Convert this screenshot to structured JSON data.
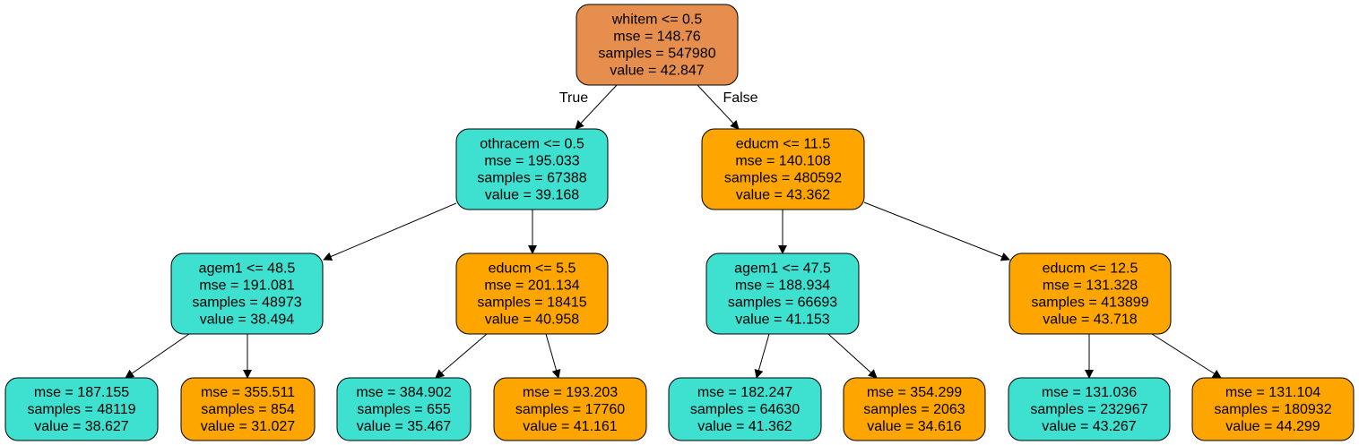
{
  "colors": {
    "root": "#e58e4d",
    "teal": "#3ee0d0",
    "orange": "#ffa500"
  },
  "edge_labels": {
    "true": "True",
    "false": "False"
  },
  "nodes": [
    {
      "id": "n0",
      "color": "root",
      "lines": [
        "whitem <= 0.5",
        "mse = 148.76",
        "samples = 547980",
        "value = 42.847"
      ]
    },
    {
      "id": "n1",
      "color": "teal",
      "lines": [
        "othracem <= 0.5",
        "mse = 195.033",
        "samples = 67388",
        "value = 39.168"
      ]
    },
    {
      "id": "n2",
      "color": "orange",
      "lines": [
        "educm <= 11.5",
        "mse = 140.108",
        "samples = 480592",
        "value = 43.362"
      ]
    },
    {
      "id": "n3",
      "color": "teal",
      "lines": [
        "agem1 <= 48.5",
        "mse = 191.081",
        "samples = 48973",
        "value = 38.494"
      ]
    },
    {
      "id": "n4",
      "color": "orange",
      "lines": [
        "educm <= 5.5",
        "mse = 201.134",
        "samples = 18415",
        "value = 40.958"
      ]
    },
    {
      "id": "n5",
      "color": "teal",
      "lines": [
        "agem1 <= 47.5",
        "mse = 188.934",
        "samples = 66693",
        "value = 41.153"
      ]
    },
    {
      "id": "n6",
      "color": "orange",
      "lines": [
        "educm <= 12.5",
        "mse = 131.328",
        "samples = 413899",
        "value = 43.718"
      ]
    },
    {
      "id": "n7",
      "color": "teal",
      "lines": [
        "mse = 187.155",
        "samples = 48119",
        "value = 38.627"
      ]
    },
    {
      "id": "n8",
      "color": "orange",
      "lines": [
        "mse = 355.511",
        "samples = 854",
        "value = 31.027"
      ]
    },
    {
      "id": "n9",
      "color": "teal",
      "lines": [
        "mse = 384.902",
        "samples = 655",
        "value = 35.467"
      ]
    },
    {
      "id": "n10",
      "color": "orange",
      "lines": [
        "mse = 193.203",
        "samples = 17760",
        "value = 41.161"
      ]
    },
    {
      "id": "n11",
      "color": "teal",
      "lines": [
        "mse = 182.247",
        "samples = 64630",
        "value = 41.362"
      ]
    },
    {
      "id": "n12",
      "color": "orange",
      "lines": [
        "mse = 354.299",
        "samples = 2063",
        "value = 34.616"
      ]
    },
    {
      "id": "n13",
      "color": "teal",
      "lines": [
        "mse = 131.036",
        "samples = 232967",
        "value = 43.267"
      ]
    },
    {
      "id": "n14",
      "color": "orange",
      "lines": [
        "mse = 131.104",
        "samples = 180932",
        "value = 44.299"
      ]
    }
  ],
  "edges": [
    {
      "from": "n0",
      "to": "n1",
      "label": "true"
    },
    {
      "from": "n0",
      "to": "n2",
      "label": "false"
    },
    {
      "from": "n1",
      "to": "n3"
    },
    {
      "from": "n1",
      "to": "n4"
    },
    {
      "from": "n2",
      "to": "n5"
    },
    {
      "from": "n2",
      "to": "n6"
    },
    {
      "from": "n3",
      "to": "n7"
    },
    {
      "from": "n3",
      "to": "n8"
    },
    {
      "from": "n4",
      "to": "n9"
    },
    {
      "from": "n4",
      "to": "n10"
    },
    {
      "from": "n5",
      "to": "n11"
    },
    {
      "from": "n5",
      "to": "n12"
    },
    {
      "from": "n6",
      "to": "n13"
    },
    {
      "from": "n6",
      "to": "n14"
    }
  ]
}
